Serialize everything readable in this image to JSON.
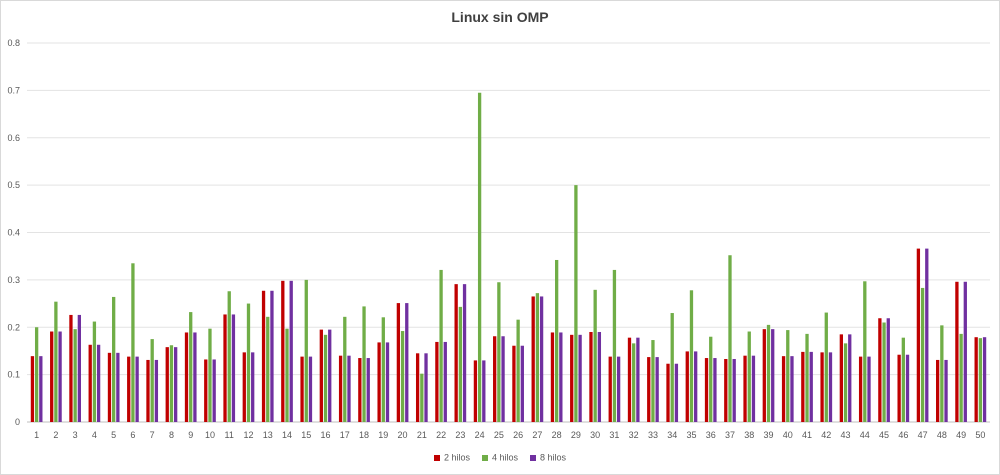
{
  "chart_data": {
    "type": "bar",
    "title": "Linux sin OMP",
    "xlabel": "",
    "ylabel": "",
    "ylim": [
      0,
      0.8
    ],
    "yticks": [
      "0",
      "0.1",
      "0.2",
      "0.3",
      "0.4",
      "0.5",
      "0.6",
      "0.7",
      "0.8"
    ],
    "grid": true,
    "legend_position": "bottom",
    "categories": [
      "1",
      "2",
      "3",
      "4",
      "5",
      "6",
      "7",
      "8",
      "9",
      "10",
      "11",
      "12",
      "13",
      "14",
      "15",
      "16",
      "17",
      "18",
      "19",
      "20",
      "21",
      "22",
      "23",
      "24",
      "25",
      "26",
      "27",
      "28",
      "29",
      "30",
      "31",
      "32",
      "33",
      "34",
      "35",
      "36",
      "37",
      "38",
      "39",
      "40",
      "41",
      "42",
      "43",
      "44",
      "45",
      "46",
      "47",
      "48",
      "49",
      "50"
    ],
    "series": [
      {
        "name": "2 hilos",
        "color": "#c00000",
        "values": [
          0.139,
          0.191,
          0.226,
          0.163,
          0.146,
          0.138,
          0.131,
          0.158,
          0.189,
          0.132,
          0.227,
          0.147,
          0.277,
          0.298,
          0.138,
          0.195,
          0.14,
          0.135,
          0.168,
          0.251,
          0.145,
          0.169,
          0.291,
          0.13,
          0.181,
          0.161,
          0.265,
          0.189,
          0.184,
          0.19,
          0.138,
          0.178,
          0.137,
          0.123,
          0.149,
          0.135,
          0.133,
          0.14,
          0.196,
          0.139,
          0.148,
          0.147,
          0.185,
          0.138,
          0.219,
          0.142,
          0.366,
          0.131,
          0.296,
          0.179
        ]
      },
      {
        "name": "4 hilos",
        "color": "#70ad47",
        "values": [
          0.2,
          0.254,
          0.196,
          0.212,
          0.264,
          0.335,
          0.175,
          0.162,
          0.232,
          0.197,
          0.276,
          0.25,
          0.222,
          0.197,
          0.3,
          0.184,
          0.222,
          0.244,
          0.221,
          0.192,
          0.102,
          0.321,
          0.243,
          0.695,
          0.295,
          0.216,
          0.272,
          0.342,
          0.5,
          0.279,
          0.321,
          0.166,
          0.173,
          0.23,
          0.278,
          0.18,
          0.352,
          0.191,
          0.205,
          0.194,
          0.186,
          0.231,
          0.166,
          0.297,
          0.21,
          0.178,
          0.283,
          0.204,
          0.186,
          0.177
        ]
      },
      {
        "name": "8 hilos",
        "color": "#7030a0",
        "values": [
          0.139,
          0.191,
          0.226,
          0.163,
          0.146,
          0.138,
          0.131,
          0.158,
          0.189,
          0.132,
          0.227,
          0.147,
          0.277,
          0.298,
          0.138,
          0.195,
          0.14,
          0.135,
          0.168,
          0.251,
          0.145,
          0.169,
          0.291,
          0.13,
          0.181,
          0.161,
          0.265,
          0.189,
          0.184,
          0.19,
          0.138,
          0.178,
          0.137,
          0.123,
          0.149,
          0.135,
          0.133,
          0.14,
          0.196,
          0.139,
          0.148,
          0.147,
          0.185,
          0.138,
          0.219,
          0.142,
          0.366,
          0.131,
          0.296,
          0.179
        ]
      }
    ]
  }
}
